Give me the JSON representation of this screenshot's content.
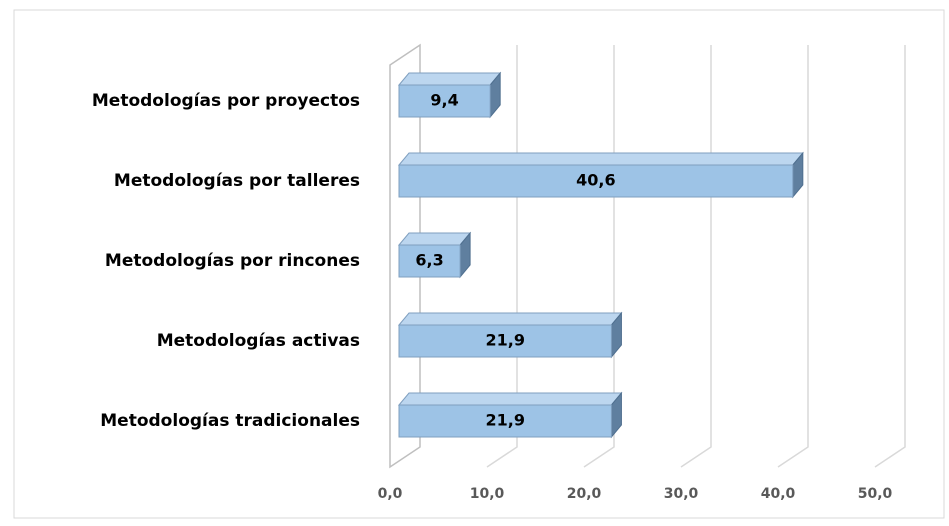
{
  "chart_data": {
    "type": "bar",
    "orientation": "horizontal",
    "categories": [
      "Metodologías por proyectos",
      "Metodologías por talleres",
      "Metodologías por rincones",
      "Metodologías activas",
      "Metodologías tradicionales"
    ],
    "values": [
      9.4,
      40.6,
      6.3,
      21.9,
      21.9
    ],
    "value_labels": [
      "9,4",
      "40,6",
      "6,3",
      "21,9",
      "21,9"
    ],
    "color": "#9dc3e6",
    "xlim": [
      0,
      50
    ],
    "xticks": [
      {
        "value": 0,
        "label": "0,0"
      },
      {
        "value": 10,
        "label": "10,0"
      },
      {
        "value": 20,
        "label": "20,0"
      },
      {
        "value": 30,
        "label": "30,0"
      },
      {
        "value": 40,
        "label": "40,0"
      },
      {
        "value": 50,
        "label": "50,0"
      }
    ],
    "grid": true
  }
}
